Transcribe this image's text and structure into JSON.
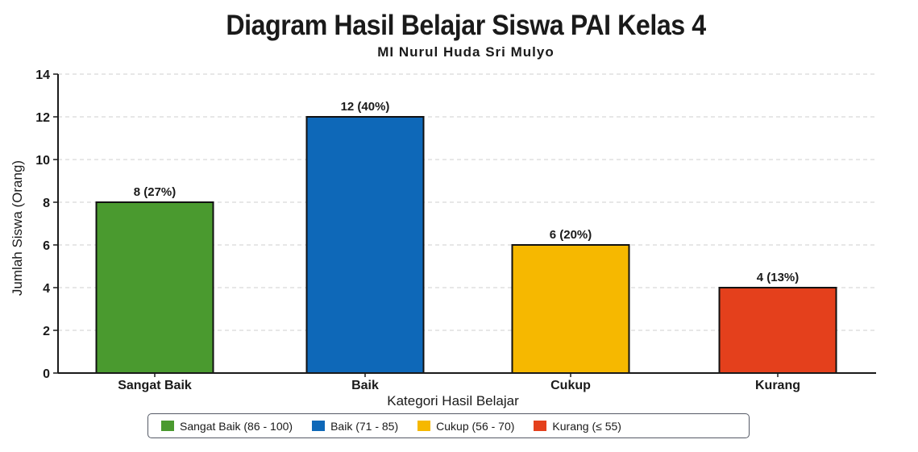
{
  "chart_data": {
    "type": "bar",
    "title": "Diagram Hasil Belajar Siswa PAI Kelas 4",
    "subtitle": "MI Nurul Huda Sri Mulyo",
    "xlabel": "Kategori Hasil Belajar",
    "ylabel": "Jumlah Siswa (Orang)",
    "ylim": [
      0,
      14
    ],
    "yticks": [
      0,
      2,
      4,
      6,
      8,
      10,
      12,
      14
    ],
    "grid": "horizontal dashed",
    "legend_position": "bottom",
    "categories": [
      "Sangat Baik",
      "Baik",
      "Cukup",
      "Kurang"
    ],
    "values": [
      8,
      12,
      6,
      4
    ],
    "data_labels": [
      "8 (27%)",
      "12 (40%)",
      "6 (20%)",
      "4 (13%)"
    ],
    "colors": [
      "#4a9a2f",
      "#0e68b8",
      "#f6b800",
      "#e4401c"
    ],
    "legend": [
      {
        "label": "Sangat Baik (86 - 100)",
        "color": "#4a9a2f"
      },
      {
        "label": "Baik (71 - 85)",
        "color": "#0e68b8"
      },
      {
        "label": "Cukup (56 - 70)",
        "color": "#f6b800"
      },
      {
        "label": "Kurang (≤ 55)",
        "color": "#e4401c"
      }
    ]
  }
}
